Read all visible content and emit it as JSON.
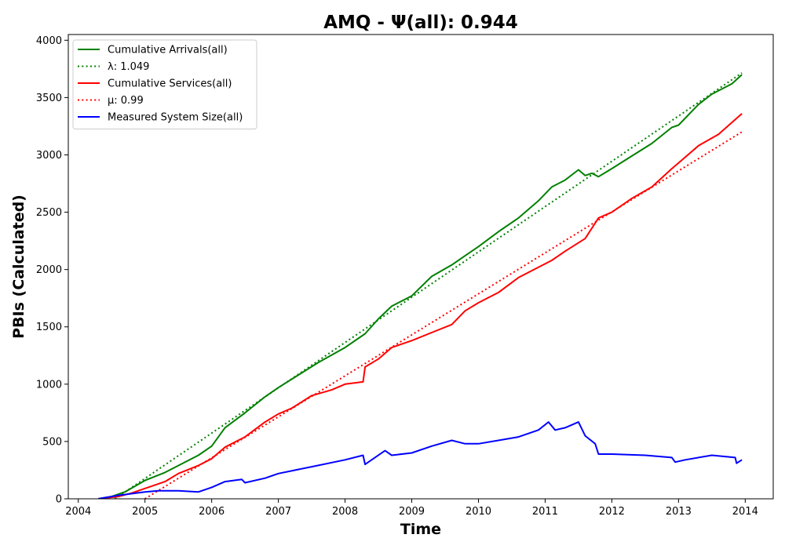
{
  "chart_data": {
    "type": "line",
    "title": "AMQ -  Ψ(all): 0.944",
    "xlabel": "Time",
    "ylabel": "PBIs (Calculated)",
    "xlim": [
      2003.85,
      2014.42
    ],
    "ylim": [
      0,
      4050
    ],
    "xticks": [
      2004,
      2005,
      2006,
      2007,
      2008,
      2009,
      2010,
      2011,
      2012,
      2013,
      2014
    ],
    "xtick_labels": [
      "2004",
      "2005",
      "2006",
      "2007",
      "2008",
      "2009",
      "2010",
      "2011",
      "2012",
      "2013",
      "2014"
    ],
    "yticks": [
      0,
      500,
      1000,
      1500,
      2000,
      2500,
      3000,
      3500,
      4000
    ],
    "ytick_labels": [
      "0",
      "500",
      "1000",
      "1500",
      "2000",
      "2500",
      "3000",
      "3500",
      "4000"
    ],
    "grid": false,
    "legend_position": "top-left",
    "series": [
      {
        "name": "Cumulative Arrivals(all)",
        "color": "#008000",
        "style": "solid",
        "x": [
          2004.3,
          2004.5,
          2004.7,
          2005.0,
          2005.3,
          2005.5,
          2005.8,
          2006.0,
          2006.2,
          2006.5,
          2006.8,
          2007.0,
          2007.3,
          2007.6,
          2008.0,
          2008.3,
          2008.5,
          2008.7,
          2009.0,
          2009.3,
          2009.6,
          2009.8,
          2010.0,
          2010.3,
          2010.6,
          2010.9,
          2011.1,
          2011.3,
          2011.5,
          2011.6,
          2011.7,
          2011.8,
          2012.0,
          2012.3,
          2012.6,
          2012.9,
          2013.0,
          2013.3,
          2013.5,
          2013.8,
          2013.95
        ],
        "y": [
          0,
          20,
          60,
          160,
          230,
          290,
          380,
          460,
          620,
          750,
          890,
          970,
          1080,
          1190,
          1320,
          1440,
          1570,
          1680,
          1770,
          1940,
          2040,
          2120,
          2200,
          2330,
          2450,
          2600,
          2720,
          2780,
          2870,
          2820,
          2840,
          2810,
          2880,
          2990,
          3100,
          3240,
          3260,
          3440,
          3530,
          3620,
          3700
        ]
      },
      {
        "name": "λ: 1.049",
        "color": "#008000",
        "style": "dotted",
        "x": [
          2004.55,
          2013.95
        ],
        "y": [
          0,
          3715
        ]
      },
      {
        "name": "Cumulative Services(all)",
        "color": "#ff0000",
        "style": "solid",
        "x": [
          2004.3,
          2004.6,
          2004.8,
          2005.0,
          2005.3,
          2005.5,
          2005.8,
          2006.0,
          2006.2,
          2006.5,
          2006.8,
          2007.0,
          2007.2,
          2007.5,
          2007.8,
          2008.0,
          2008.27,
          2008.3,
          2008.5,
          2008.7,
          2009.0,
          2009.3,
          2009.6,
          2009.8,
          2010.0,
          2010.3,
          2010.6,
          2010.9,
          2011.1,
          2011.3,
          2011.6,
          2011.8,
          2012.0,
          2012.3,
          2012.6,
          2012.9,
          2013.0,
          2013.3,
          2013.6,
          2013.95
        ],
        "y": [
          0,
          20,
          50,
          90,
          150,
          220,
          290,
          350,
          450,
          540,
          670,
          740,
          790,
          900,
          950,
          1000,
          1020,
          1150,
          1220,
          1320,
          1380,
          1450,
          1520,
          1640,
          1710,
          1800,
          1930,
          2020,
          2080,
          2160,
          2270,
          2450,
          2500,
          2620,
          2720,
          2880,
          2930,
          3080,
          3180,
          3360
        ]
      },
      {
        "name": "μ: 0.99",
        "color": "#ff0000",
        "style": "dotted",
        "x": [
          2005.0,
          2013.95
        ],
        "y": [
          0,
          3200
        ]
      },
      {
        "name": "Measured System Size(all)",
        "color": "#0000ff",
        "style": "solid",
        "x": [
          2004.3,
          2004.6,
          2005.0,
          2005.2,
          2005.5,
          2005.8,
          2006.0,
          2006.2,
          2006.45,
          2006.5,
          2006.8,
          2007.0,
          2007.5,
          2008.0,
          2008.27,
          2008.3,
          2008.6,
          2008.7,
          2009.0,
          2009.3,
          2009.6,
          2009.8,
          2010.0,
          2010.3,
          2010.6,
          2010.9,
          2011.05,
          2011.15,
          2011.3,
          2011.5,
          2011.6,
          2011.75,
          2011.8,
          2012.0,
          2012.5,
          2012.9,
          2012.95,
          2013.1,
          2013.5,
          2013.85,
          2013.87,
          2013.95
        ],
        "y": [
          0,
          30,
          60,
          70,
          70,
          60,
          100,
          150,
          170,
          140,
          180,
          220,
          280,
          340,
          380,
          300,
          420,
          380,
          400,
          460,
          510,
          480,
          480,
          510,
          540,
          600,
          670,
          600,
          620,
          670,
          550,
          480,
          390,
          390,
          380,
          360,
          320,
          340,
          380,
          360,
          310,
          340
        ]
      }
    ]
  }
}
